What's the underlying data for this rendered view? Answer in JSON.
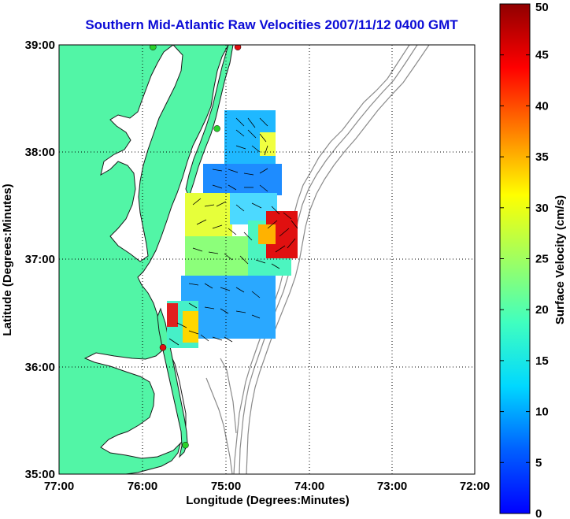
{
  "title": "Southern Mid-Atlantic Raw Velocities 2007/11/12 0400 GMT",
  "map": {
    "xlabel": "Longitude (Degrees:Minutes)",
    "ylabel": "Latitude (Degrees:Minutes)",
    "lon_range": [
      -77,
      -72
    ],
    "lat_range": [
      35,
      39
    ],
    "x_ticks": [
      "77:00",
      "76:00",
      "75:00",
      "74:00",
      "73:00",
      "72:00"
    ],
    "y_ticks": [
      "39:00",
      "38:00",
      "37:00",
      "36:00",
      "35:00"
    ],
    "grid": true,
    "colors": {
      "land": "#52f5a6",
      "coastline": "#1a1a1a",
      "bathymetry": "#8a8a8a",
      "station_green": "#2ad12a",
      "station_red": "#e01010"
    }
  },
  "colorbar": {
    "label": "Surface Velocity (cm/s)",
    "ticks": [
      "0",
      "5",
      "10",
      "15",
      "20",
      "25",
      "30",
      "35",
      "40",
      "45",
      "50"
    ],
    "min": 0,
    "max": 50
  },
  "stations": [
    {
      "lon": -74.85,
      "lat": 38.98,
      "color": "red"
    },
    {
      "lon": -75.87,
      "lat": 38.98,
      "color": "green"
    },
    {
      "lon": -75.1,
      "lat": 38.22,
      "color": "green"
    },
    {
      "lon": -75.75,
      "lat": 36.18,
      "color": "red"
    },
    {
      "lon": -75.48,
      "lat": 35.27,
      "color": "green"
    }
  ]
}
